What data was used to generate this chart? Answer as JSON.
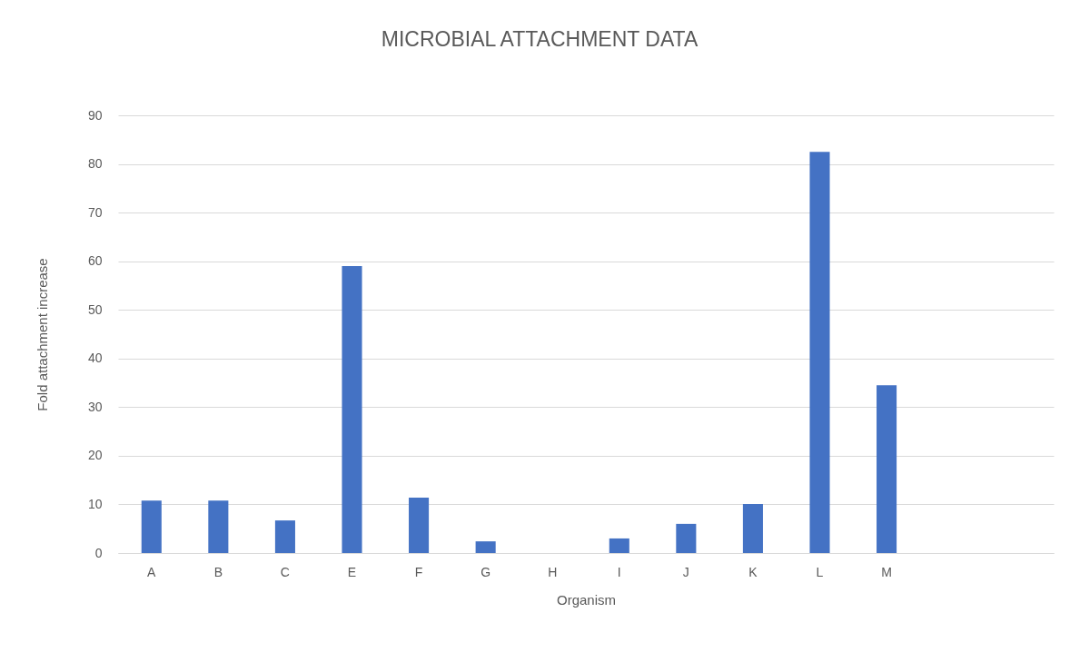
{
  "chart_data": {
    "type": "bar",
    "title": "MICROBIAL ATTACHMENT DATA",
    "xlabel": "Organism",
    "ylabel": "Fold  attachment increase",
    "categories": [
      "A",
      "B",
      "C",
      "E",
      "F",
      "G",
      "H",
      "I",
      "J",
      "K",
      "L",
      "M",
      null,
      null
    ],
    "values": [
      10.8,
      10.8,
      6.7,
      59.0,
      11.4,
      2.4,
      0,
      3.0,
      6.0,
      10.1,
      82.5,
      34.5,
      null,
      null
    ],
    "color": "#4472c4",
    "ylim": [
      0,
      90
    ],
    "yticks": [
      0,
      10,
      20,
      30,
      40,
      50,
      60,
      70,
      80,
      90
    ],
    "grid": "y"
  }
}
